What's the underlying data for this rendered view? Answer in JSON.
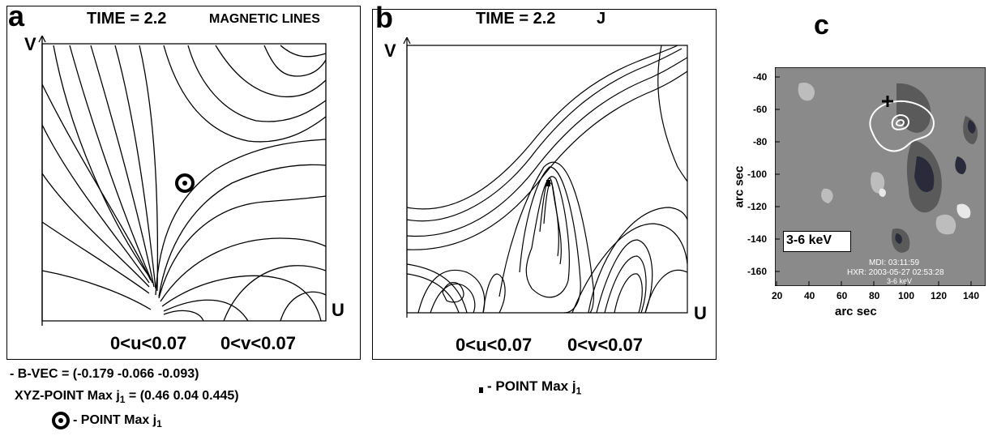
{
  "panel_a": {
    "label": "a",
    "time": "TIME = 2.2",
    "title": "MAGNETIC LINES",
    "v_axis": "V",
    "u_axis": "U",
    "range_u": "0<u<0.07",
    "range_v": "0<v<0.07"
  },
  "panel_b": {
    "label": "b",
    "time": "TIME = 2.2",
    "title": "J",
    "v_axis": "V",
    "u_axis": "U",
    "range_u": "0<u<0.07",
    "range_v": "0<v<0.07"
  },
  "panel_c": {
    "label": "c",
    "energy": "3-6 keV",
    "mdi": "MDI: 03:11:59",
    "hxr": "HXR: 2003-05-27  02:53:28",
    "hxr_band": "3-6 keV",
    "y_label": "arc sec",
    "x_label": "arc sec",
    "y_ticks": [
      "-40",
      "-60",
      "-80",
      "-100",
      "-120",
      "-140",
      "-160"
    ],
    "x_ticks": [
      "20",
      "40",
      "60",
      "80",
      "100",
      "120",
      "140"
    ]
  },
  "notes_a": {
    "bvec": "- B-VEC = (-0.179  -0.066  -0.093)",
    "xyz_prefix": "XYZ-POINT Max j",
    "xyz_sub": "1",
    "xyz_suffix": " = (0.46  0.04  0.445)",
    "point_prefix": "- POINT Max j",
    "point_sub": "1"
  },
  "notes_b": {
    "point_prefix": "- POINT Max j",
    "point_sub": "1"
  }
}
